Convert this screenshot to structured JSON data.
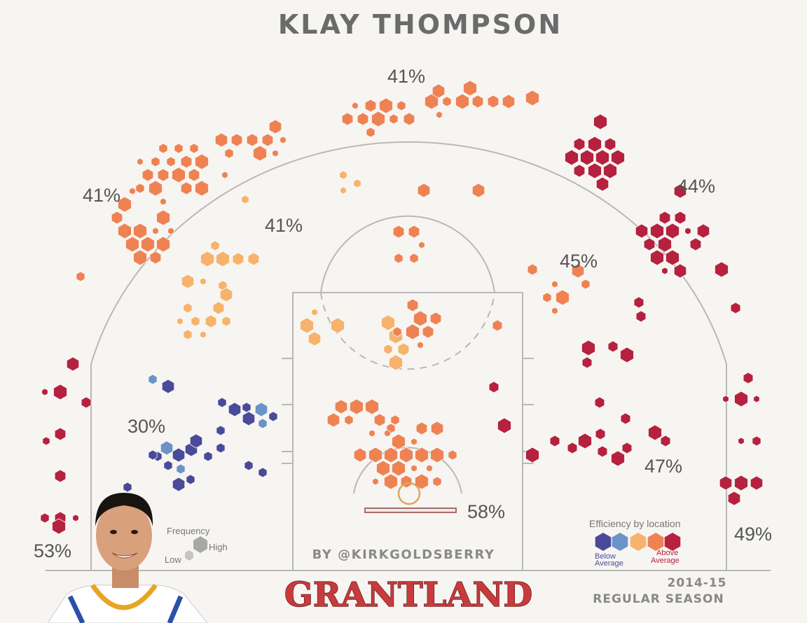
{
  "header": {
    "title": "KLAY THOMPSON"
  },
  "footer": {
    "byline": "BY @KIRKGOLDSBERRY",
    "brand": "GRANTLAND",
    "season_year": "2014-15",
    "season_type": "REGULAR SEASON"
  },
  "legend": {
    "frequency_title": "Frequency",
    "frequency_high": "High",
    "frequency_low": "Low",
    "efficiency_title": "Efficiency by location",
    "below_line1": "Below",
    "below_line2": "Average",
    "above_line1": "Above",
    "above_line2": "Average"
  },
  "colors": {
    "efficiency_scale": [
      "#4a4a9a",
      "#6c93c8",
      "#f7b36b",
      "#ef8253",
      "#b5213e"
    ],
    "court_lines": "#b8b8b8",
    "background": "#f7f5f2"
  },
  "chart_data": {
    "type": "hexbin shot chart",
    "zones": [
      {
        "id": "left-corner-3",
        "pct": "53%",
        "efficiency": "above average"
      },
      {
        "id": "left-wing-3",
        "pct": "41%",
        "efficiency": "above average"
      },
      {
        "id": "top-of-key-3",
        "pct": "41%",
        "efficiency": "above average"
      },
      {
        "id": "right-wing-3",
        "pct": "44%",
        "efficiency": "above average"
      },
      {
        "id": "right-corner-3",
        "pct": "49%",
        "efficiency": "above average"
      },
      {
        "id": "left-elbow-midrange",
        "pct": "41%",
        "efficiency": "average"
      },
      {
        "id": "left-baseline-midrange",
        "pct": "30%",
        "efficiency": "below average"
      },
      {
        "id": "right-elbow-midrange",
        "pct": "45%",
        "efficiency": "above average"
      },
      {
        "id": "right-baseline-midrange",
        "pct": "47%",
        "efficiency": "above average"
      },
      {
        "id": "restricted-area",
        "pct": "58%",
        "efficiency": "above average"
      }
    ]
  }
}
